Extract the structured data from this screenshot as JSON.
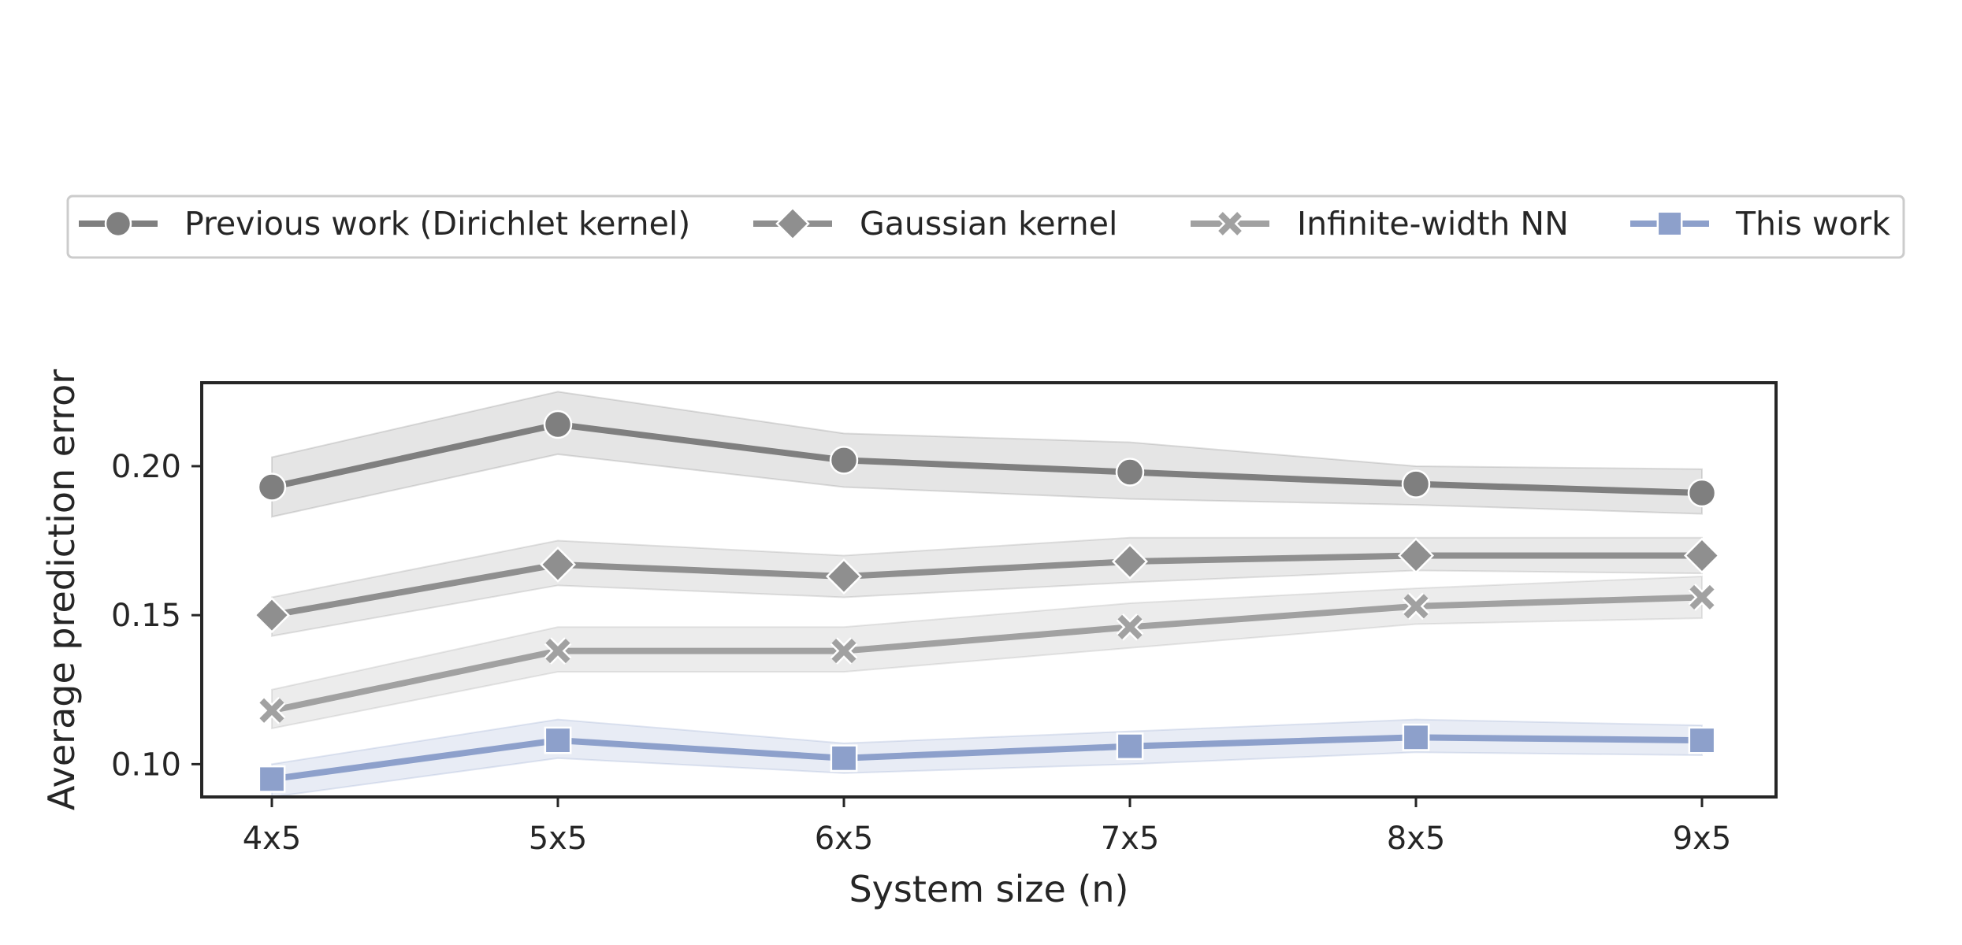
{
  "chart_data": {
    "type": "line",
    "title": "",
    "xlabel": "System size (n)",
    "ylabel": "Average prediction error",
    "categories": [
      "4x5",
      "5x5",
      "6x5",
      "7x5",
      "8x5",
      "9x5"
    ],
    "ylim": [
      0.089,
      0.228
    ],
    "yticks": [
      "0.10",
      "0.15",
      "0.20"
    ],
    "grid": false,
    "legend_position": "top",
    "series": [
      {
        "name": "Previous work (Dirichlet kernel)",
        "marker": "circle",
        "color": "#7f7f7f",
        "values": [
          0.193,
          0.214,
          0.202,
          0.198,
          0.194,
          0.191
        ],
        "lower": [
          0.183,
          0.204,
          0.193,
          0.189,
          0.187,
          0.184
        ],
        "upper": [
          0.203,
          0.225,
          0.211,
          0.208,
          0.2,
          0.199
        ]
      },
      {
        "name": "Gaussian kernel",
        "marker": "diamond",
        "color": "#8f8f8f",
        "values": [
          0.15,
          0.167,
          0.163,
          0.168,
          0.17,
          0.17
        ],
        "lower": [
          0.143,
          0.16,
          0.156,
          0.161,
          0.165,
          0.164
        ],
        "upper": [
          0.156,
          0.175,
          0.17,
          0.176,
          0.176,
          0.176
        ]
      },
      {
        "name": "Infinite-width NN",
        "marker": "x",
        "color": "#a1a1a1",
        "values": [
          0.118,
          0.138,
          0.138,
          0.146,
          0.153,
          0.156
        ],
        "lower": [
          0.112,
          0.131,
          0.131,
          0.139,
          0.147,
          0.149
        ],
        "upper": [
          0.125,
          0.146,
          0.146,
          0.154,
          0.159,
          0.163
        ]
      },
      {
        "name": "This work",
        "marker": "square",
        "color": "#8da0cb",
        "values": [
          0.095,
          0.108,
          0.102,
          0.106,
          0.109,
          0.108
        ],
        "lower": [
          0.089,
          0.102,
          0.097,
          0.1,
          0.104,
          0.103
        ],
        "upper": [
          0.1,
          0.115,
          0.107,
          0.111,
          0.115,
          0.113
        ]
      }
    ]
  }
}
